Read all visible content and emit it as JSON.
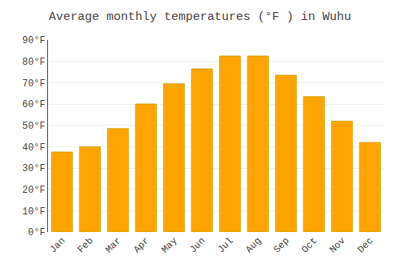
{
  "chart_data": {
    "type": "bar",
    "title": "Average monthly temperatures (°F ) in Wuhu",
    "categories": [
      "Jan",
      "Feb",
      "Mar",
      "Apr",
      "May",
      "Jun",
      "Jul",
      "Aug",
      "Sep",
      "Oct",
      "Nov",
      "Dec"
    ],
    "values": [
      37.5,
      40.0,
      48.5,
      60.0,
      69.5,
      76.5,
      82.5,
      82.5,
      73.5,
      63.5,
      52.0,
      42.0
    ],
    "color": "#FFA500",
    "ylim": [
      0,
      90
    ],
    "yticks": [
      {
        "value": 0,
        "label": "0°F"
      },
      {
        "value": 10,
        "label": "10°F"
      },
      {
        "value": 20,
        "label": "20°F"
      },
      {
        "value": 30,
        "label": "30°F"
      },
      {
        "value": 40,
        "label": "40°F"
      },
      {
        "value": 50,
        "label": "50°F"
      },
      {
        "value": 60,
        "label": "60°F"
      },
      {
        "value": 70,
        "label": "70°F"
      },
      {
        "value": 80,
        "label": "80°F"
      },
      {
        "value": 90,
        "label": "90°F"
      }
    ],
    "grid": true
  }
}
